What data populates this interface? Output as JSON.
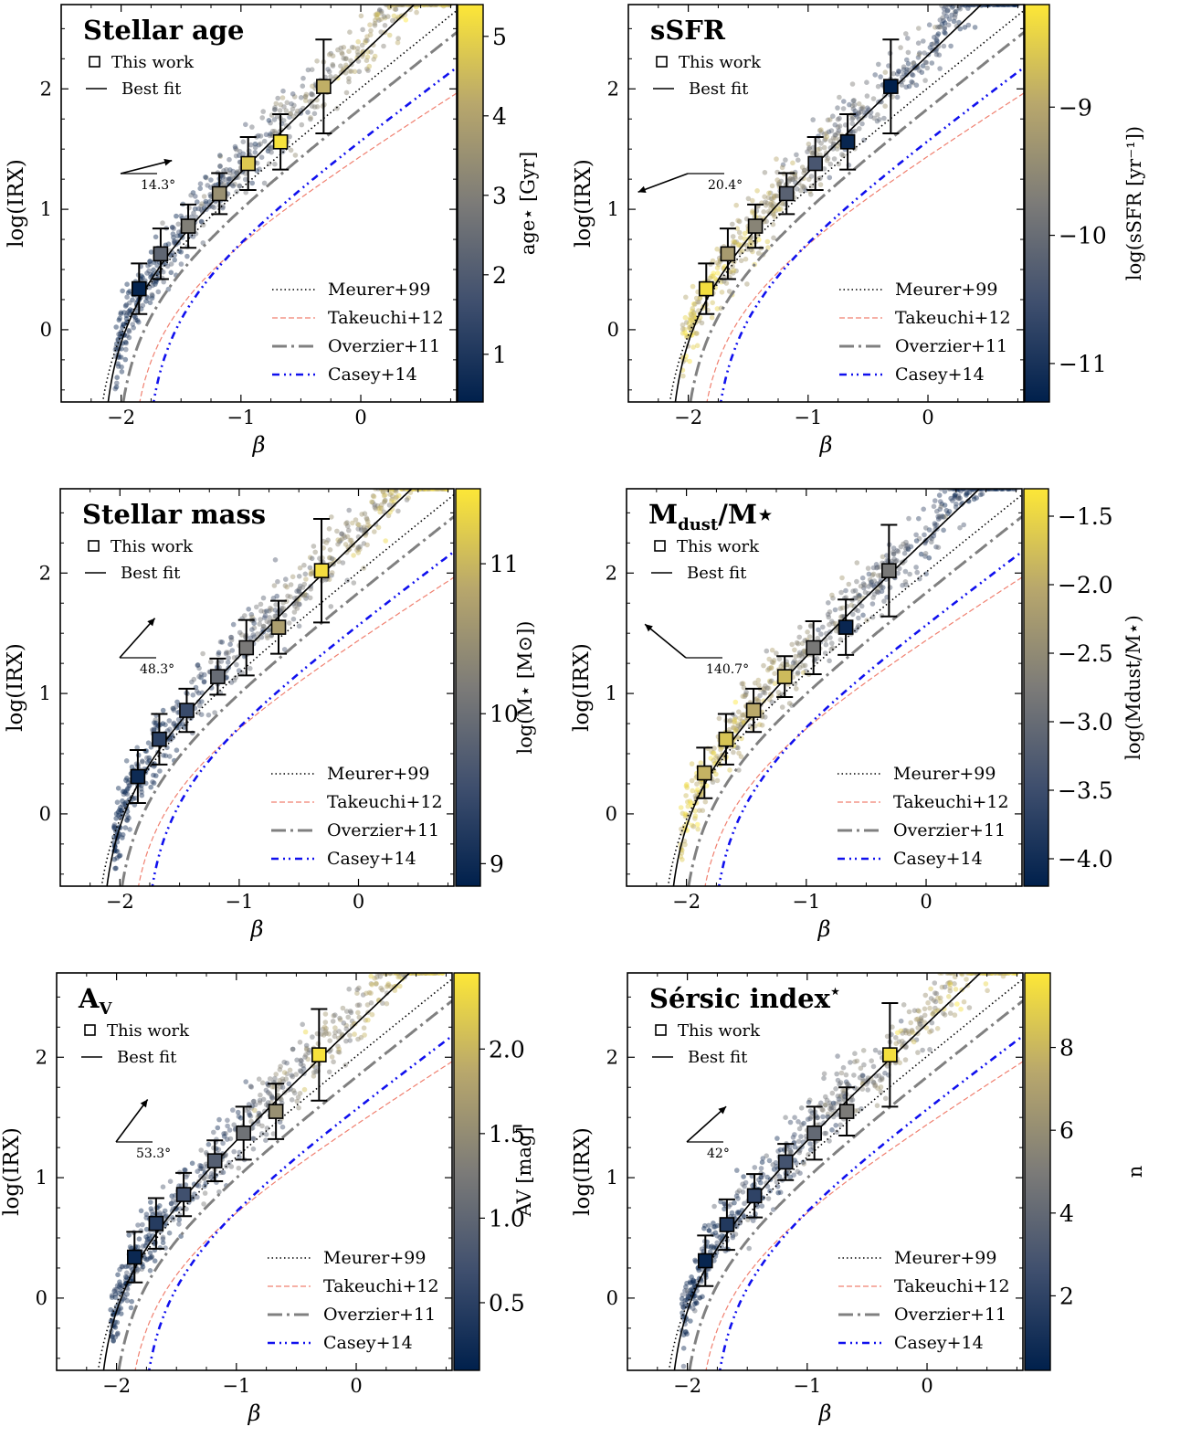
{
  "figure": {
    "common": {
      "xlabel": "β",
      "ylabel": "log(IRX)",
      "xlim": [
        -2.5,
        0.8
      ],
      "ylim": [
        -0.6,
        2.7
      ],
      "xticks": [
        -2,
        -1,
        0
      ],
      "xtick_labels": [
        "−2",
        "−1",
        "0"
      ],
      "yticks": [
        0,
        1,
        2
      ],
      "ytick_labels": [
        "0",
        "1",
        "2"
      ],
      "legend_top": [
        {
          "label": "This work",
          "marker": "open-square"
        },
        {
          "label": "Best fit",
          "style": "solid"
        }
      ],
      "legend_bottom": [
        {
          "label": "Meurer+99",
          "style": "dotted",
          "color": "#000000"
        },
        {
          "label": "Takeuchi+12",
          "style": "dashed",
          "color": "#f08070"
        },
        {
          "label": "Overzier+11",
          "style": "dashdot",
          "color": "#808080"
        },
        {
          "label": "Casey+14",
          "style": "dashdotdot",
          "color": "#1010ee"
        }
      ],
      "colormap": [
        "#00204c",
        "#3f4f6e",
        "#7c7b78",
        "#b8a76c",
        "#fde737"
      ]
    }
  },
  "chart_data": [
    {
      "type": "scatter",
      "title": "Stellar age",
      "title_sub": "",
      "title_sup": "",
      "cbar_label": "age⋆ [Gyr]",
      "clim": [
        0.4,
        5.4
      ],
      "cbar_ticks": [
        1,
        2,
        3,
        4,
        5
      ],
      "cbar_tick_labels": [
        "1",
        "2",
        "3",
        "4",
        "5"
      ],
      "angle_label": "14.3°",
      "angle_deg": 14.3,
      "angle_dir": 1,
      "binned": {
        "x": [
          -1.85,
          -1.67,
          -1.44,
          -1.18,
          -0.94,
          -0.67,
          -0.31
        ],
        "y": [
          0.34,
          0.63,
          0.86,
          1.13,
          1.38,
          1.56,
          2.02
        ],
        "yerr": [
          0.21,
          0.21,
          0.18,
          0.17,
          0.22,
          0.23,
          0.39
        ],
        "c": [
          0.5,
          2.3,
          3.0,
          3.5,
          4.8,
          5.3,
          4.3
        ]
      },
      "gradient": "up"
    },
    {
      "type": "scatter",
      "title": "sSFR",
      "title_sub": "",
      "title_sup": "",
      "cbar_label": "log(sSFR [yr⁻¹])",
      "clim": [
        -11.3,
        -8.2
      ],
      "cbar_ticks": [
        -9,
        -10,
        -11
      ],
      "cbar_tick_labels": [
        "−9",
        "−10",
        "−11"
      ],
      "angle_label": "20.4°",
      "angle_deg": 20.4,
      "angle_dir": -1,
      "binned": {
        "x": [
          -1.85,
          -1.67,
          -1.44,
          -1.18,
          -0.94,
          -0.67,
          -0.31
        ],
        "y": [
          0.34,
          0.63,
          0.86,
          1.13,
          1.38,
          1.56,
          2.02
        ],
        "yerr": [
          0.21,
          0.21,
          0.18,
          0.17,
          0.22,
          0.23,
          0.39
        ],
        "c": [
          -8.3,
          -9.2,
          -9.6,
          -10.2,
          -10.4,
          -11.2,
          -11.3
        ]
      },
      "gradient": "down"
    },
    {
      "type": "scatter",
      "title": "Stellar mass",
      "title_sub": "",
      "title_sup": "",
      "cbar_label": "log(M⋆ [M⊙])",
      "clim": [
        8.85,
        11.5
      ],
      "cbar_ticks": [
        9,
        10,
        11
      ],
      "cbar_tick_labels": [
        "9",
        "10",
        "11"
      ],
      "angle_label": "48.3°",
      "angle_deg": 48.3,
      "angle_dir": 1,
      "binned": {
        "x": [
          -1.85,
          -1.67,
          -1.44,
          -1.18,
          -0.94,
          -0.67,
          -0.31
        ],
        "y": [
          0.31,
          0.62,
          0.86,
          1.14,
          1.38,
          1.55,
          2.02
        ],
        "yerr": [
          0.22,
          0.21,
          0.18,
          0.15,
          0.23,
          0.22,
          0.43
        ],
        "c": [
          9.0,
          9.3,
          9.45,
          9.95,
          10.15,
          10.7,
          11.4
        ]
      },
      "gradient": "up"
    },
    {
      "type": "scatter",
      "title": "M",
      "title_sub": "dust",
      "title_sup": "/M⋆",
      "cbar_label": "log(Mdust/M⋆)",
      "clim": [
        -4.2,
        -1.3
      ],
      "cbar_ticks": [
        -1.5,
        -2.0,
        -2.5,
        -3.0,
        -3.5,
        -4.0
      ],
      "cbar_tick_labels": [
        "−1.5",
        "−2.0",
        "−2.5",
        "−3.0",
        "−3.5",
        "−4.0"
      ],
      "angle_label": "140.7°",
      "angle_deg": 140.7,
      "angle_dir": 1,
      "binned": {
        "x": [
          -1.85,
          -1.67,
          -1.44,
          -1.18,
          -0.94,
          -0.67,
          -0.31
        ],
        "y": [
          0.34,
          0.62,
          0.86,
          1.14,
          1.38,
          1.55,
          2.02
        ],
        "yerr": [
          0.21,
          0.21,
          0.18,
          0.17,
          0.22,
          0.23,
          0.38
        ],
        "c": [
          -1.9,
          -1.7,
          -2.0,
          -1.8,
          -2.8,
          -4.1,
          -2.8
        ]
      },
      "gradient": "down"
    },
    {
      "type": "scatter",
      "title": "A",
      "title_sub": "V",
      "title_sup": "",
      "cbar_label": "AV [mag]",
      "clim": [
        0.1,
        2.45
      ],
      "cbar_ticks": [
        0.5,
        1.0,
        1.5,
        2.0
      ],
      "cbar_tick_labels": [
        "0.5",
        "1.0",
        "1.5",
        "2.0"
      ],
      "angle_label": "53.3°",
      "angle_deg": 53.3,
      "angle_dir": 1,
      "binned": {
        "x": [
          -1.85,
          -1.67,
          -1.44,
          -1.18,
          -0.94,
          -0.67,
          -0.31
        ],
        "y": [
          0.34,
          0.62,
          0.86,
          1.14,
          1.37,
          1.55,
          2.02
        ],
        "yerr": [
          0.21,
          0.21,
          0.18,
          0.17,
          0.22,
          0.23,
          0.38
        ],
        "c": [
          0.2,
          0.45,
          0.7,
          0.9,
          1.15,
          1.55,
          2.4
        ]
      },
      "gradient": "up"
    },
    {
      "type": "scatter",
      "title": "Sérsic index",
      "title_sub": "",
      "title_sup": "⋆",
      "cbar_label": "n",
      "clim": [
        0.2,
        9.8
      ],
      "cbar_ticks": [
        2,
        4,
        6,
        8
      ],
      "cbar_tick_labels": [
        "2",
        "4",
        "6",
        "8"
      ],
      "angle_label": "42°",
      "angle_deg": 42,
      "angle_dir": 1,
      "binned": {
        "x": [
          -1.85,
          -1.67,
          -1.44,
          -1.18,
          -0.94,
          -0.67,
          -0.31
        ],
        "y": [
          0.31,
          0.61,
          0.85,
          1.13,
          1.37,
          1.55,
          2.02
        ],
        "yerr": [
          0.21,
          0.21,
          0.18,
          0.15,
          0.22,
          0.2,
          0.43
        ],
        "c": [
          0.5,
          1.5,
          2.0,
          2.8,
          4.0,
          5.0,
          9.5
        ]
      },
      "gradient": "up"
    }
  ]
}
